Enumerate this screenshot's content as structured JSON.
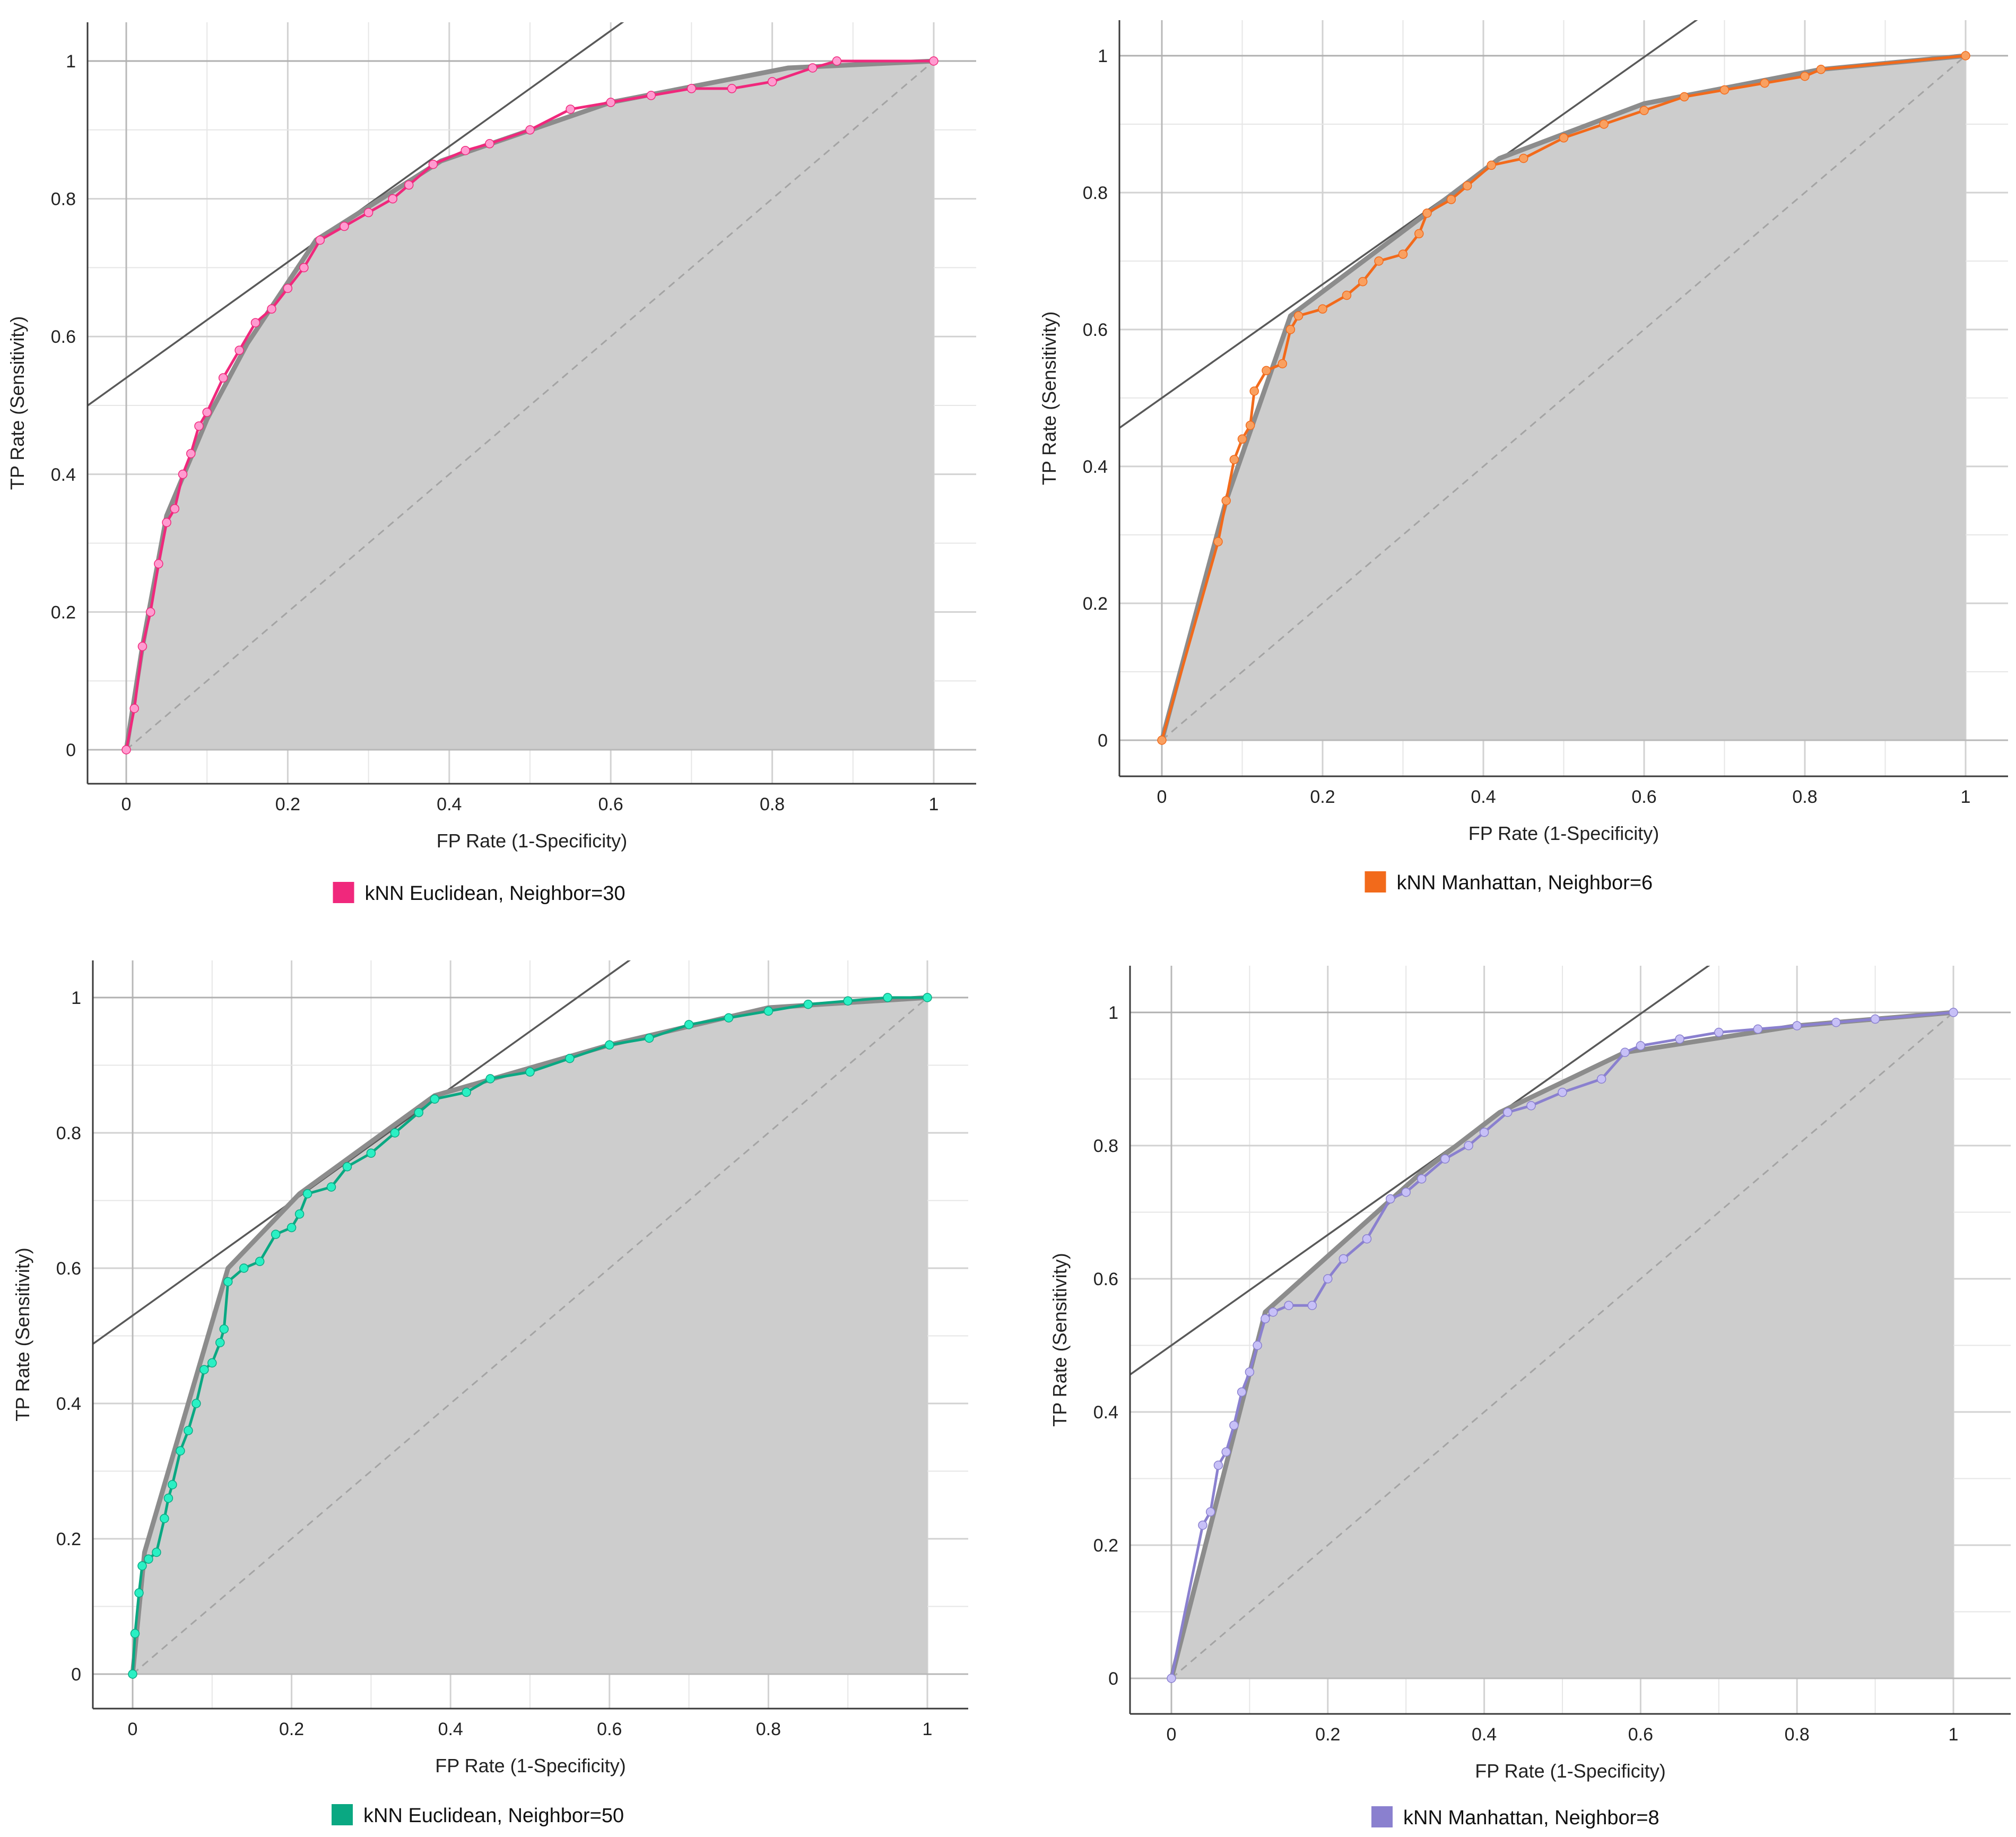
{
  "chart_data": [
    {
      "type": "line",
      "title": "",
      "xlabel": "FP Rate (1-Specificity)",
      "ylabel": "TP Rate (Sensitivity)",
      "xlim": [
        0,
        1
      ],
      "ylim": [
        0,
        1
      ],
      "xticks": [
        "0",
        "0.2",
        "0.4",
        "0.6",
        "0.8",
        "1"
      ],
      "yticks": [
        "0",
        "0.2",
        "0.4",
        "0.6",
        "0.8",
        "1"
      ],
      "grid": true,
      "legend": {
        "label": "kNN Euclidean, Neighbor=30",
        "position": "bottom-center"
      },
      "series": [
        {
          "name": "kNN Euclidean, Neighbor=30",
          "color": "#f0287c",
          "marker_color": "#ff9bd0",
          "x": [
            0,
            0.01,
            0.02,
            0.03,
            0.04,
            0.05,
            0.06,
            0.07,
            0.08,
            0.09,
            0.1,
            0.12,
            0.14,
            0.16,
            0.18,
            0.2,
            0.22,
            0.24,
            0.27,
            0.3,
            0.33,
            0.35,
            0.38,
            0.42,
            0.45,
            0.5,
            0.55,
            0.6,
            0.65,
            0.7,
            0.75,
            0.8,
            0.85,
            0.88,
            1.0
          ],
          "y": [
            0,
            0.06,
            0.15,
            0.2,
            0.27,
            0.33,
            0.35,
            0.4,
            0.43,
            0.47,
            0.49,
            0.54,
            0.58,
            0.62,
            0.64,
            0.67,
            0.7,
            0.74,
            0.76,
            0.78,
            0.8,
            0.82,
            0.85,
            0.87,
            0.88,
            0.9,
            0.93,
            0.94,
            0.95,
            0.96,
            0.96,
            0.97,
            0.99,
            1.0,
            1.0
          ]
        }
      ],
      "convex_hull": {
        "x": [
          0,
          0.02,
          0.05,
          0.1,
          0.15,
          0.235,
          0.39,
          0.6,
          0.82,
          1.0
        ],
        "y": [
          0,
          0.15,
          0.34,
          0.48,
          0.59,
          0.74,
          0.855,
          0.94,
          0.99,
          1.0
        ]
      },
      "iso_performance_line": {
        "slope": 0.84,
        "intercept": 0.54
      },
      "diagonal": true
    },
    {
      "type": "line",
      "title": "",
      "xlabel": "FP Rate (1-Specificity)",
      "ylabel": "TP Rate (Sensitivity)",
      "xlim": [
        0,
        1
      ],
      "ylim": [
        0,
        1
      ],
      "xticks": [
        "0",
        "0.2",
        "0.4",
        "0.6",
        "0.8",
        "1"
      ],
      "yticks": [
        "0",
        "0.2",
        "0.4",
        "0.6",
        "0.8",
        "1"
      ],
      "grid": true,
      "legend": {
        "label": "kNN Manhattan, Neighbor=6",
        "position": "bottom-center"
      },
      "series": [
        {
          "name": "kNN Manhattan, Neighbor=6",
          "color": "#f26a1b",
          "marker_color": "#f9a060",
          "x": [
            0,
            0.07,
            0.08,
            0.09,
            0.1,
            0.11,
            0.115,
            0.13,
            0.15,
            0.16,
            0.17,
            0.2,
            0.23,
            0.25,
            0.27,
            0.3,
            0.32,
            0.33,
            0.36,
            0.38,
            0.41,
            0.45,
            0.5,
            0.55,
            0.6,
            0.65,
            0.7,
            0.75,
            0.8,
            0.82,
            1.0
          ],
          "y": [
            0,
            0.29,
            0.35,
            0.41,
            0.44,
            0.46,
            0.51,
            0.54,
            0.55,
            0.6,
            0.62,
            0.63,
            0.65,
            0.67,
            0.7,
            0.71,
            0.74,
            0.77,
            0.79,
            0.81,
            0.84,
            0.85,
            0.88,
            0.9,
            0.92,
            0.94,
            0.95,
            0.96,
            0.97,
            0.98,
            1.0
          ]
        }
      ],
      "convex_hull": {
        "x": [
          0,
          0.08,
          0.16,
          0.33,
          0.42,
          0.6,
          0.82,
          1.0
        ],
        "y": [
          0,
          0.35,
          0.62,
          0.77,
          0.85,
          0.93,
          0.98,
          1.0
        ]
      },
      "iso_performance_line": {
        "slope": 0.83,
        "intercept": 0.5
      },
      "diagonal": true
    },
    {
      "type": "line",
      "title": "",
      "xlabel": "FP Rate (1-Specificity)",
      "ylabel": "TP Rate (Sensitivity)",
      "xlim": [
        0,
        1
      ],
      "ylim": [
        0,
        1
      ],
      "xticks": [
        "0",
        "0.2",
        "0.4",
        "0.6",
        "0.8",
        "1"
      ],
      "yticks": [
        "0",
        "0.2",
        "0.4",
        "0.6",
        "0.8",
        "1"
      ],
      "grid": true,
      "legend": {
        "label": "kNN Euclidean, Neighbor=50",
        "position": "bottom-center"
      },
      "series": [
        {
          "name": "kNN Euclidean, Neighbor=50",
          "color": "#0aa882",
          "marker_color": "#2af0c4",
          "x": [
            0,
            0.003,
            0.008,
            0.012,
            0.02,
            0.03,
            0.04,
            0.045,
            0.05,
            0.06,
            0.07,
            0.08,
            0.09,
            0.1,
            0.11,
            0.115,
            0.12,
            0.14,
            0.16,
            0.18,
            0.2,
            0.21,
            0.22,
            0.25,
            0.27,
            0.3,
            0.33,
            0.36,
            0.38,
            0.42,
            0.45,
            0.5,
            0.55,
            0.6,
            0.65,
            0.7,
            0.75,
            0.8,
            0.85,
            0.9,
            0.95,
            1.0
          ],
          "y": [
            0,
            0.06,
            0.12,
            0.16,
            0.17,
            0.18,
            0.23,
            0.26,
            0.28,
            0.33,
            0.36,
            0.4,
            0.45,
            0.46,
            0.49,
            0.51,
            0.58,
            0.6,
            0.61,
            0.65,
            0.66,
            0.68,
            0.71,
            0.72,
            0.75,
            0.77,
            0.8,
            0.83,
            0.85,
            0.86,
            0.88,
            0.89,
            0.91,
            0.93,
            0.94,
            0.96,
            0.97,
            0.98,
            0.99,
            0.995,
            1.0,
            1.0
          ]
        }
      ],
      "convex_hull": {
        "x": [
          0,
          0.015,
          0.12,
          0.21,
          0.38,
          0.6,
          0.8,
          1.0
        ],
        "y": [
          0,
          0.18,
          0.6,
          0.71,
          0.855,
          0.93,
          0.985,
          1.0
        ]
      },
      "iso_performance_line": {
        "slope": 0.84,
        "intercept": 0.53
      },
      "diagonal": true
    },
    {
      "type": "line",
      "title": "",
      "xlabel": "FP Rate (1-Specificity)",
      "ylabel": "TP Rate (Sensitivity)",
      "xlim": [
        0,
        1
      ],
      "ylim": [
        0,
        1
      ],
      "xticks": [
        "0",
        "0.2",
        "0.4",
        "0.6",
        "0.8",
        "1"
      ],
      "yticks": [
        "0",
        "0.2",
        "0.4",
        "0.6",
        "0.8",
        "1"
      ],
      "grid": true,
      "legend": {
        "label": "kNN Manhattan, Neighbor=8",
        "position": "bottom-center"
      },
      "series": [
        {
          "name": "kNN Manhattan, Neighbor=8",
          "color": "#8a80cf",
          "marker_color": "#c7c0f7",
          "x": [
            0,
            0.04,
            0.05,
            0.06,
            0.07,
            0.08,
            0.09,
            0.1,
            0.11,
            0.12,
            0.13,
            0.15,
            0.18,
            0.2,
            0.22,
            0.25,
            0.28,
            0.3,
            0.32,
            0.35,
            0.38,
            0.4,
            0.43,
            0.46,
            0.5,
            0.55,
            0.58,
            0.6,
            0.65,
            0.7,
            0.75,
            0.8,
            0.85,
            0.9,
            1.0
          ],
          "y": [
            0,
            0.23,
            0.25,
            0.32,
            0.34,
            0.38,
            0.43,
            0.46,
            0.5,
            0.54,
            0.55,
            0.56,
            0.56,
            0.6,
            0.63,
            0.66,
            0.72,
            0.73,
            0.75,
            0.78,
            0.8,
            0.82,
            0.85,
            0.86,
            0.88,
            0.9,
            0.94,
            0.95,
            0.96,
            0.97,
            0.975,
            0.98,
            0.985,
            0.99,
            1.0
          ]
        }
      ],
      "convex_hull": {
        "x": [
          0,
          0.12,
          0.32,
          0.42,
          0.58,
          0.8,
          1.0
        ],
        "y": [
          0,
          0.55,
          0.76,
          0.85,
          0.94,
          0.98,
          1.0
        ]
      },
      "iso_performance_line": {
        "slope": 0.83,
        "intercept": 0.5
      },
      "diagonal": true
    }
  ]
}
